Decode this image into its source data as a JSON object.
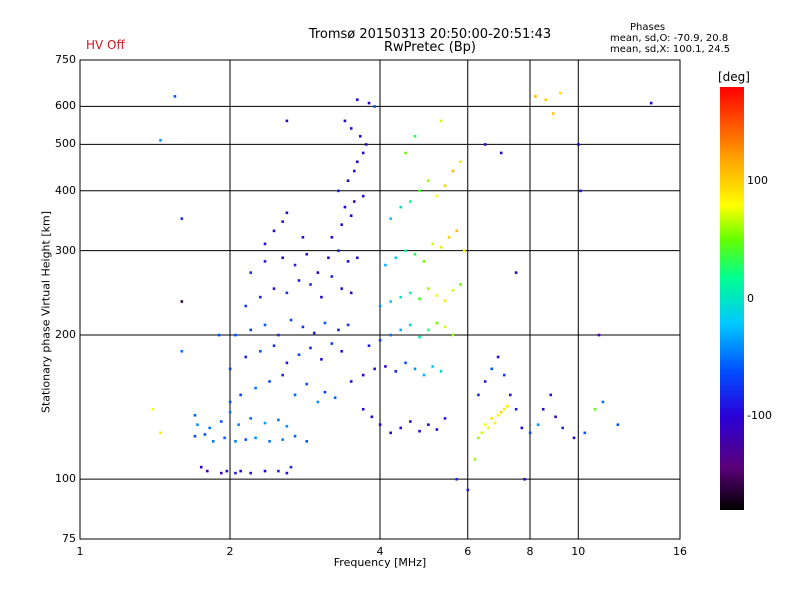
{
  "header": {
    "title_line1": "Tromsø 20150313 20:50:00-20:51:43",
    "title_line2": "RwPretec (Bp)",
    "hv_status": "HV Off",
    "phases_title": "Phases",
    "phases_mean_0": "mean, sd,O: -70.9, 20.8",
    "phases_mean_x": "mean, sd,X: 100.1, 24.5"
  },
  "colorbar": {
    "unit": "[deg]",
    "ticks": [
      "100",
      "0",
      "-100"
    ],
    "colors": [
      "#000000",
      "#5a0078",
      "#2a00d6",
      "#0050ff",
      "#00c8ff",
      "#00ff90",
      "#66ff00",
      "#ffff00",
      "#ff9a00",
      "#ff0000"
    ]
  },
  "chart_data": {
    "type": "scatter",
    "title": "Tromsø 20150313 20:50:00-20:51:43",
    "subtitle": "RwPretec (Bp)",
    "xlabel": "Frequency [MHz]",
    "ylabel": "Stationary phase Virtual Height [km]",
    "xscale": "log",
    "yscale": "log",
    "xlim": [
      1,
      16
    ],
    "ylim": [
      75,
      750
    ],
    "x_ticks": [
      "1",
      "2",
      "4",
      "6",
      "8",
      "10",
      "16"
    ],
    "y_ticks": [
      "750",
      "600",
      "500",
      "400",
      "300",
      "200",
      "100",
      "75"
    ],
    "grid": true,
    "color_by": "phase [deg]",
    "points": [
      [
        1.92,
        103,
        -110
      ],
      [
        1.97,
        104,
        -100
      ],
      [
        2.05,
        103,
        -90
      ],
      [
        2.1,
        104,
        -105
      ],
      [
        2.2,
        103,
        -95
      ],
      [
        2.35,
        104,
        -100
      ],
      [
        2.5,
        104,
        -85
      ],
      [
        2.6,
        103,
        -95
      ],
      [
        2.65,
        106,
        -80
      ],
      [
        1.75,
        106,
        -110
      ],
      [
        1.8,
        104,
        -120
      ],
      [
        1.7,
        123,
        -70
      ],
      [
        1.78,
        124,
        -60
      ],
      [
        1.85,
        120,
        -50
      ],
      [
        1.95,
        122,
        -55
      ],
      [
        2.05,
        120,
        -45
      ],
      [
        2.15,
        121,
        -60
      ],
      [
        2.25,
        122,
        -40
      ],
      [
        2.4,
        120,
        -50
      ],
      [
        2.55,
        121,
        -45
      ],
      [
        2.7,
        123,
        -55
      ],
      [
        2.85,
        120,
        -60
      ],
      [
        1.72,
        130,
        -40
      ],
      [
        1.82,
        128,
        -50
      ],
      [
        1.92,
        132,
        -60
      ],
      [
        2.08,
        130,
        -45
      ],
      [
        2.2,
        134,
        -55
      ],
      [
        2.35,
        131,
        -35
      ],
      [
        2.5,
        133,
        -50
      ],
      [
        2.6,
        129,
        -40
      ],
      [
        1.7,
        136,
        -55
      ],
      [
        2.0,
        138,
        -45
      ],
      [
        2.0,
        145,
        -60
      ],
      [
        2.1,
        150,
        -70
      ],
      [
        2.25,
        155,
        -50
      ],
      [
        2.4,
        160,
        -65
      ],
      [
        2.55,
        165,
        -80
      ],
      [
        2.7,
        150,
        -55
      ],
      [
        2.85,
        158,
        -60
      ],
      [
        3.0,
        145,
        -40
      ],
      [
        3.1,
        152,
        -75
      ],
      [
        3.25,
        148,
        -55
      ],
      [
        2.0,
        170,
        -70
      ],
      [
        2.15,
        180,
        -85
      ],
      [
        2.3,
        185,
        -60
      ],
      [
        2.45,
        190,
        -75
      ],
      [
        2.6,
        175,
        -90
      ],
      [
        2.75,
        182,
        -65
      ],
      [
        2.9,
        188,
        -80
      ],
      [
        3.05,
        178,
        -100
      ],
      [
        3.2,
        192,
        -70
      ],
      [
        3.35,
        185,
        -95
      ],
      [
        2.05,
        200,
        -60
      ],
      [
        2.2,
        205,
        -70
      ],
      [
        2.35,
        210,
        -55
      ],
      [
        2.5,
        200,
        -80
      ],
      [
        2.65,
        215,
        -65
      ],
      [
        2.8,
        208,
        -75
      ],
      [
        2.95,
        202,
        -85
      ],
      [
        3.1,
        212,
        -60
      ],
      [
        3.3,
        205,
        -90
      ],
      [
        3.45,
        210,
        -75
      ],
      [
        2.15,
        230,
        -70
      ],
      [
        2.3,
        240,
        -85
      ],
      [
        2.45,
        250,
        -95
      ],
      [
        2.6,
        245,
        -75
      ],
      [
        2.75,
        260,
        -90
      ],
      [
        2.9,
        255,
        -80
      ],
      [
        3.05,
        240,
        -100
      ],
      [
        3.2,
        265,
        -85
      ],
      [
        3.35,
        250,
        -95
      ],
      [
        3.5,
        245,
        -110
      ],
      [
        2.2,
        270,
        -80
      ],
      [
        2.35,
        285,
        -90
      ],
      [
        2.55,
        290,
        -100
      ],
      [
        2.7,
        280,
        -85
      ],
      [
        2.85,
        295,
        -95
      ],
      [
        3.0,
        270,
        -105
      ],
      [
        3.15,
        290,
        -110
      ],
      [
        3.3,
        300,
        -85
      ],
      [
        3.45,
        285,
        -100
      ],
      [
        3.6,
        290,
        -90
      ],
      [
        2.35,
        310,
        -95
      ],
      [
        2.45,
        330,
        -100
      ],
      [
        2.55,
        345,
        -90
      ],
      [
        2.6,
        360,
        -105
      ],
      [
        3.2,
        320,
        -110
      ],
      [
        3.35,
        340,
        -95
      ],
      [
        3.5,
        355,
        -105
      ],
      [
        3.4,
        370,
        -100
      ],
      [
        3.55,
        380,
        -110
      ],
      [
        3.7,
        390,
        -95
      ],
      [
        3.3,
        400,
        -90
      ],
      [
        3.45,
        420,
        -105
      ],
      [
        3.55,
        440,
        -100
      ],
      [
        3.6,
        460,
        -110
      ],
      [
        3.7,
        480,
        -95
      ],
      [
        3.75,
        500,
        -105
      ],
      [
        3.65,
        520,
        -100
      ],
      [
        3.5,
        540,
        -90
      ],
      [
        3.4,
        560,
        -110
      ],
      [
        3.6,
        620,
        -95
      ],
      [
        3.8,
        610,
        -105
      ],
      [
        3.9,
        600,
        -60
      ],
      [
        3.7,
        140,
        -95
      ],
      [
        3.85,
        135,
        -100
      ],
      [
        4.0,
        130,
        -110
      ],
      [
        4.2,
        125,
        -105
      ],
      [
        4.4,
        128,
        -100
      ],
      [
        4.6,
        132,
        -110
      ],
      [
        4.8,
        126,
        -95
      ],
      [
        5.0,
        130,
        -100
      ],
      [
        5.2,
        127,
        -105
      ],
      [
        5.4,
        134,
        -90
      ],
      [
        3.5,
        160,
        -100
      ],
      [
        3.7,
        165,
        -110
      ],
      [
        3.9,
        170,
        -95
      ],
      [
        4.1,
        172,
        -105
      ],
      [
        4.3,
        168,
        -85
      ],
      [
        4.5,
        175,
        -60
      ],
      [
        4.7,
        170,
        -40
      ],
      [
        4.9,
        165,
        -30
      ],
      [
        5.1,
        172,
        -20
      ],
      [
        5.3,
        168,
        -10
      ],
      [
        3.8,
        190,
        -90
      ],
      [
        4.0,
        195,
        -70
      ],
      [
        4.2,
        200,
        -50
      ],
      [
        4.4,
        205,
        -30
      ],
      [
        4.6,
        210,
        -10
      ],
      [
        4.8,
        198,
        10
      ],
      [
        5.0,
        205,
        30
      ],
      [
        5.2,
        212,
        50
      ],
      [
        5.4,
        208,
        70
      ],
      [
        5.6,
        200,
        60
      ],
      [
        4.0,
        230,
        -40
      ],
      [
        4.2,
        235,
        -20
      ],
      [
        4.4,
        240,
        0
      ],
      [
        4.6,
        245,
        20
      ],
      [
        4.8,
        238,
        40
      ],
      [
        5.0,
        250,
        60
      ],
      [
        5.2,
        242,
        80
      ],
      [
        5.4,
        236,
        90
      ],
      [
        5.6,
        248,
        70
      ],
      [
        5.8,
        255,
        50
      ],
      [
        4.1,
        280,
        -30
      ],
      [
        4.3,
        290,
        -10
      ],
      [
        4.5,
        300,
        10
      ],
      [
        4.7,
        295,
        30
      ],
      [
        4.9,
        285,
        50
      ],
      [
        5.1,
        310,
        70
      ],
      [
        5.3,
        305,
        90
      ],
      [
        5.5,
        320,
        100
      ],
      [
        5.7,
        330,
        110
      ],
      [
        5.9,
        300,
        80
      ],
      [
        4.2,
        350,
        -20
      ],
      [
        4.4,
        370,
        0
      ],
      [
        4.6,
        380,
        20
      ],
      [
        4.8,
        400,
        40
      ],
      [
        5.0,
        420,
        60
      ],
      [
        5.2,
        390,
        80
      ],
      [
        5.4,
        410,
        100
      ],
      [
        5.6,
        440,
        110
      ],
      [
        5.8,
        460,
        90
      ],
      [
        4.5,
        480,
        50
      ],
      [
        4.7,
        520,
        30
      ],
      [
        5.3,
        560,
        70
      ],
      [
        6.4,
        125,
        70
      ],
      [
        6.5,
        130,
        80
      ],
      [
        6.6,
        128,
        75
      ],
      [
        6.7,
        134,
        90
      ],
      [
        6.8,
        131,
        85
      ],
      [
        6.9,
        136,
        80
      ],
      [
        7.0,
        138,
        95
      ],
      [
        7.1,
        140,
        90
      ],
      [
        7.2,
        142,
        85
      ],
      [
        6.3,
        122,
        60
      ],
      [
        6.3,
        150,
        -80
      ],
      [
        6.5,
        160,
        -90
      ],
      [
        6.7,
        170,
        -60
      ],
      [
        6.9,
        180,
        -100
      ],
      [
        7.1,
        165,
        -70
      ],
      [
        7.3,
        150,
        -95
      ],
      [
        7.5,
        140,
        -85
      ],
      [
        7.7,
        128,
        -100
      ],
      [
        8.0,
        125,
        -60
      ],
      [
        8.3,
        130,
        -40
      ],
      [
        8.5,
        140,
        -100
      ],
      [
        8.8,
        150,
        -90
      ],
      [
        9.0,
        135,
        -110
      ],
      [
        9.3,
        128,
        -80
      ],
      [
        9.8,
        122,
        -100
      ],
      [
        10.3,
        125,
        -60
      ],
      [
        10.8,
        140,
        50
      ],
      [
        11.2,
        145,
        -50
      ],
      [
        8.2,
        630,
        110
      ],
      [
        8.6,
        620,
        100
      ],
      [
        9.2,
        640,
        95
      ],
      [
        8.9,
        580,
        105
      ],
      [
        1.55,
        630,
        -60
      ],
      [
        1.45,
        510,
        -40
      ],
      [
        1.6,
        350,
        -80
      ],
      [
        1.6,
        235,
        -160
      ],
      [
        1.6,
        185,
        -50
      ],
      [
        1.4,
        140,
        80
      ],
      [
        1.45,
        125,
        90
      ],
      [
        1.9,
        200,
        -60
      ],
      [
        2.6,
        560,
        -110
      ],
      [
        2.8,
        320,
        -95
      ],
      [
        6.0,
        95,
        -90
      ],
      [
        6.2,
        110,
        60
      ],
      [
        5.7,
        100,
        -80
      ],
      [
        7.8,
        100,
        -100
      ],
      [
        10.0,
        500,
        -100
      ],
      [
        10.1,
        400,
        -90
      ],
      [
        14.0,
        610,
        -100
      ],
      [
        12.0,
        130,
        -60
      ],
      [
        11.0,
        200,
        -110
      ],
      [
        7.0,
        480,
        -100
      ],
      [
        6.5,
        500,
        -110
      ],
      [
        7.5,
        270,
        -100
      ]
    ]
  }
}
